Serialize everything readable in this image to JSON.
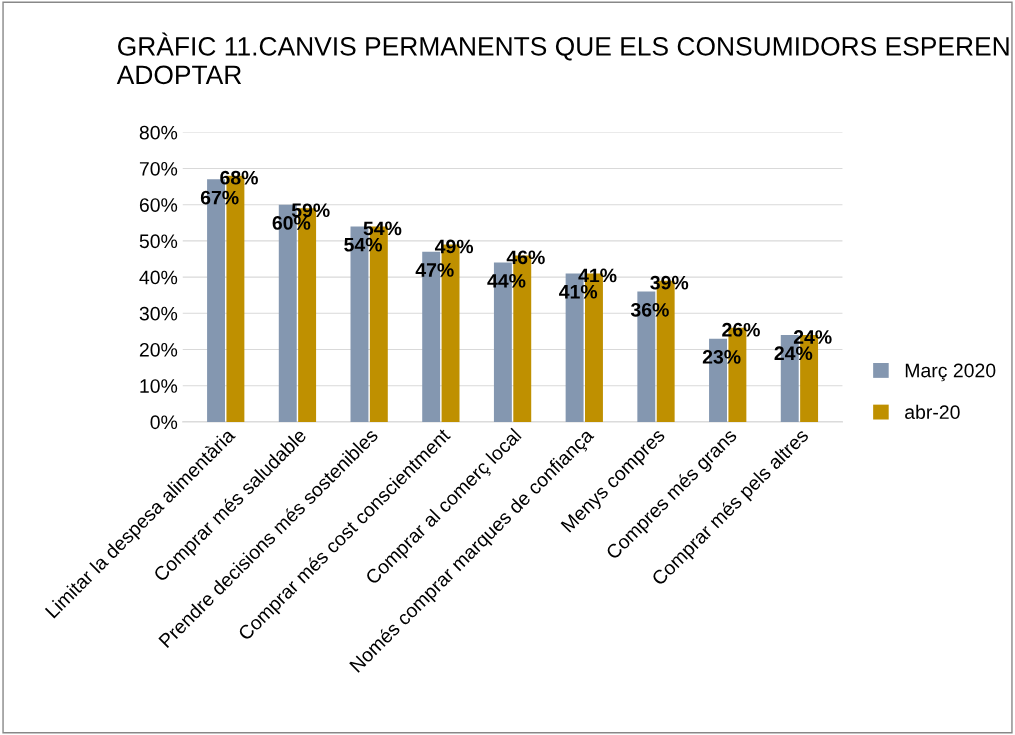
{
  "chart_data": {
    "type": "bar",
    "title": "GRÀFIC 11.CANVIS PERMANENTS QUE ELS CONSUMIDORS ESPEREN ADOPTAR",
    "categories": [
      "Limitar la despesa alimentària",
      "Comprar més saludable",
      "Prendre decisions més sostenibles",
      "Comprar més cost conscientment",
      "Comprar al comerç local",
      "Només comprar marques de confiança",
      "Menys compres",
      "Compres més grans",
      "Comprar més pels altres"
    ],
    "series": [
      {
        "name": "Març 2020",
        "color": "#8497b0",
        "values": [
          67,
          60,
          54,
          47,
          44,
          41,
          36,
          23,
          24
        ],
        "value_labels": [
          "67%",
          "60%",
          "54%",
          "47%",
          "44%",
          "41%",
          "36%",
          "23%",
          "24%"
        ]
      },
      {
        "name": "abr-20",
        "color": "#bf9000",
        "values": [
          68,
          59,
          54,
          49,
          46,
          41,
          39,
          26,
          24
        ],
        "value_labels": [
          "68%",
          "59%",
          "54%",
          "49%",
          "46%",
          "41%",
          "39%",
          "26%",
          "24%"
        ]
      }
    ],
    "ylim": [
      0,
      80
    ],
    "yticks": [
      {
        "value": 0,
        "label": "0%"
      },
      {
        "value": 10,
        "label": "10%"
      },
      {
        "value": 20,
        "label": "20%"
      },
      {
        "value": 30,
        "label": "30%"
      },
      {
        "value": 40,
        "label": "40%"
      },
      {
        "value": 50,
        "label": "50%"
      },
      {
        "value": 60,
        "label": "60%"
      },
      {
        "value": 70,
        "label": "70%"
      },
      {
        "value": 80,
        "label": "80%"
      }
    ],
    "grid": "y",
    "legend": "right"
  }
}
